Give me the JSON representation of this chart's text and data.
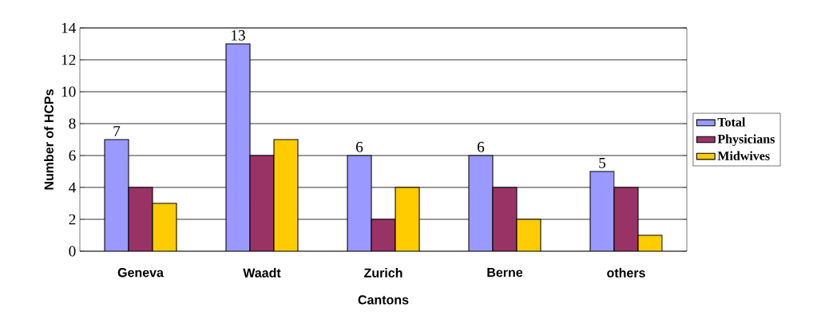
{
  "chart_data": {
    "type": "bar",
    "xlabel": "Cantons",
    "ylabel": "Number of HCPs",
    "categories": [
      "Geneva",
      "Waadt",
      "Zurich",
      "Berne",
      "others"
    ],
    "series": [
      {
        "name": "Total",
        "color": "#9999ff",
        "values": [
          7,
          13,
          6,
          6,
          5
        ],
        "value_labels": [
          "7",
          "13",
          "6",
          "6",
          "5"
        ]
      },
      {
        "name": "Physicians",
        "color": "#993366",
        "values": [
          4,
          6,
          2,
          4,
          4
        ]
      },
      {
        "name": "Midwives",
        "color": "#ffcc00",
        "values": [
          3,
          7,
          4,
          2,
          1
        ]
      }
    ],
    "ylim": [
      0,
      14
    ],
    "yticks": [
      0,
      2,
      4,
      6,
      8,
      10,
      12,
      14
    ],
    "grid": "y",
    "legend": "right"
  }
}
